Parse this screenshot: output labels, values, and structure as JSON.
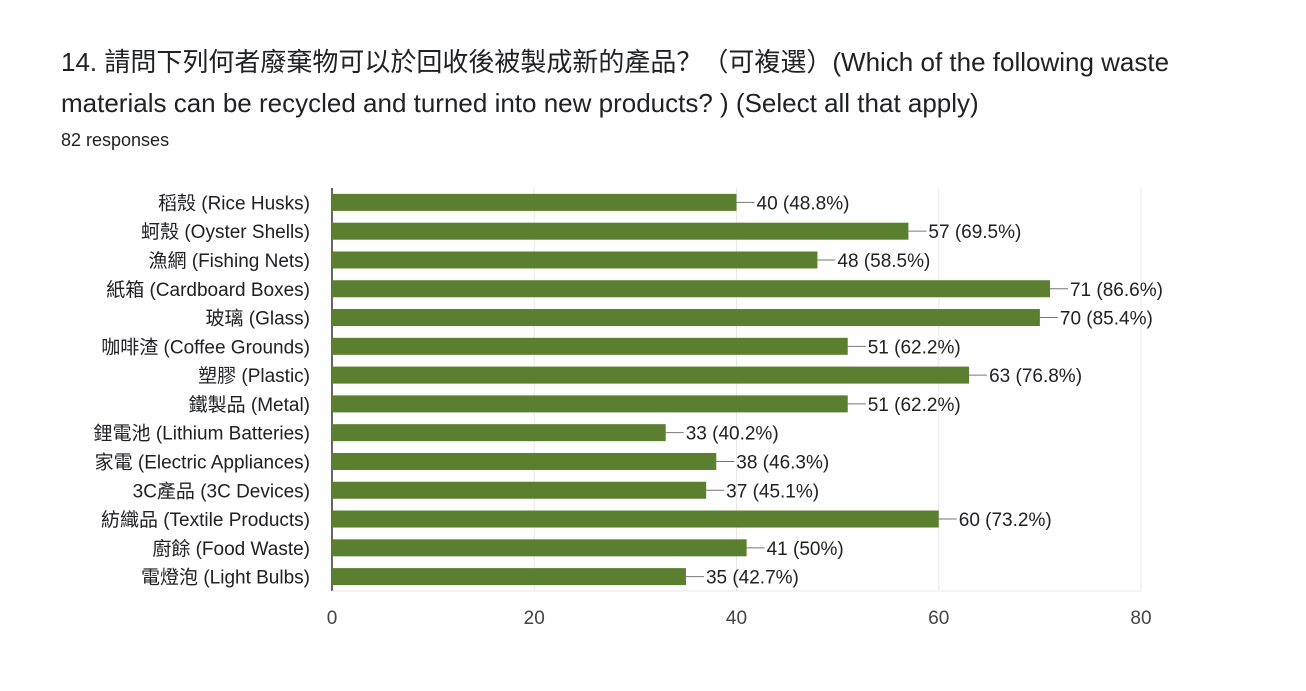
{
  "question": {
    "title": "14. 請問下列何者廢棄物可以於回收後被製成新的產品？（可複選）(Which of the following waste materials can be recycled and turned into new products? ) (Select all that apply)",
    "responses": "82 responses"
  },
  "colors": {
    "bar": "#5a7f2f",
    "grid": "#e8e8e8",
    "axis": "#333333",
    "text": "#202124",
    "tick_text": "#444444"
  },
  "chart_data": {
    "type": "bar",
    "orientation": "horizontal",
    "categories": [
      "稻殼 (Rice Husks)",
      "蚵殼 (Oyster Shells)",
      "漁網 (Fishing Nets)",
      "紙箱 (Cardboard Boxes)",
      "玻璃 (Glass)",
      "咖啡渣 (Coffee Grounds)",
      "塑膠 (Plastic)",
      "鐵製品 (Metal)",
      "鋰電池 (Lithium Batteries)",
      "家電 (Electric Appliances)",
      "3C產品 (3C Devices)",
      "紡織品 (Textile Products)",
      "廚餘 (Food Waste)",
      "電燈泡 (Light Bulbs)"
    ],
    "values": [
      40,
      57,
      48,
      71,
      70,
      51,
      63,
      51,
      33,
      38,
      37,
      60,
      41,
      35
    ],
    "data_labels": [
      "40 (48.8%)",
      "57 (69.5%)",
      "48 (58.5%)",
      "71 (86.6%)",
      "70 (85.4%)",
      "51 (62.2%)",
      "63 (76.8%)",
      "51 (62.2%)",
      "33 (40.2%)",
      "38 (46.3%)",
      "37 (45.1%)",
      "60 (73.2%)",
      "41 (50%)",
      "35 (42.7%)"
    ],
    "xlim": [
      0,
      80
    ],
    "xticks": [
      "0",
      "20",
      "40",
      "60",
      "80"
    ],
    "grid": true,
    "legend": "none"
  }
}
